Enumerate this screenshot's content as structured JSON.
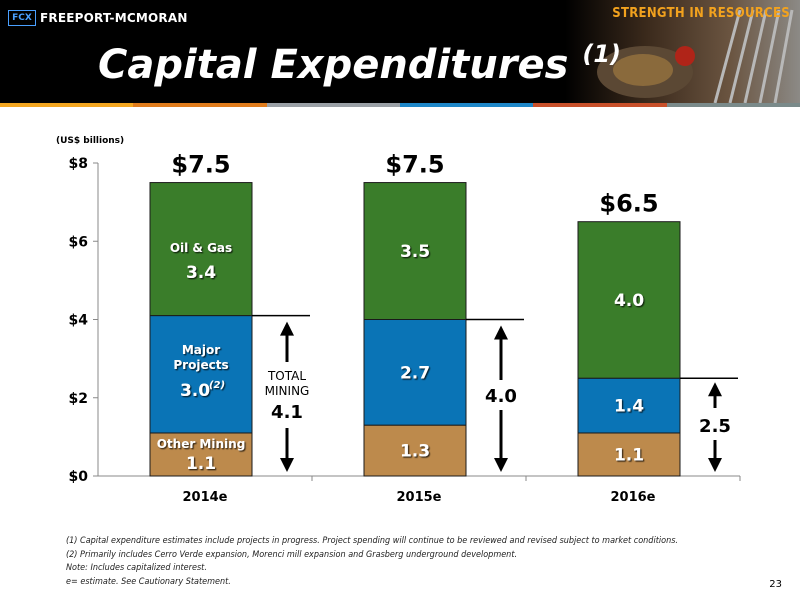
{
  "header": {
    "logo_mark": "FCX",
    "logo_text": "FREEPORT-MCMORAN",
    "tagline": "STRENGTH IN RESOURCES",
    "title": "Capital Expenditures",
    "title_note": "(1)"
  },
  "colors": {
    "oil_gas": "#3a7d2a",
    "major_projects": "#0a74b6",
    "other_mining": "#bd8a4c",
    "stripe": [
      "#f3a620",
      "#e07c1c",
      "#9aa0a6",
      "#1e87c8",
      "#c8502a",
      "#7a8a8a"
    ]
  },
  "chart_data": {
    "type": "bar",
    "stacked": true,
    "unit_label": "(US$ billions)",
    "categories": [
      "2014e",
      "2015e",
      "2016e"
    ],
    "series": [
      {
        "key": "other_mining",
        "name": "Other Mining",
        "values": [
          1.1,
          1.3,
          1.1
        ],
        "labels": [
          "1.1",
          "1.3",
          "1.1"
        ]
      },
      {
        "key": "major_projects",
        "name": "Major Projects",
        "values": [
          3.0,
          2.7,
          1.4
        ],
        "labels": [
          "3.0",
          "2.7",
          "1.4"
        ],
        "label_notes": [
          "(2)",
          "",
          ""
        ]
      },
      {
        "key": "oil_gas",
        "name": "Oil & Gas",
        "values": [
          3.4,
          3.5,
          4.0
        ],
        "labels": [
          "3.4",
          "3.5",
          "4.0"
        ]
      }
    ],
    "totals": [
      "$7.5",
      "$7.5",
      "$6.5"
    ],
    "mining_totals": [
      4.1,
      4.0,
      2.5
    ],
    "mining_total_labels": [
      "4.1",
      "4.0",
      "2.5"
    ],
    "mining_total_caption": "TOTAL MINING",
    "ylim": [
      0,
      8
    ],
    "yticks": [
      0,
      2,
      4,
      6,
      8
    ],
    "ytick_labels": [
      "$0",
      "$2",
      "$4",
      "$6",
      "$8"
    ]
  },
  "footnotes": [
    "(1)   Capital expenditure estimates include projects in progress. Project spending will continue to be reviewed and revised subject to market conditions.",
    "(2)   Primarily includes Cerro Verde expansion, Morenci mill expansion and Grasberg underground development.",
    "Note: Includes capitalized interest.",
    " e= estimate. See Cautionary Statement."
  ],
  "page_number": "23"
}
